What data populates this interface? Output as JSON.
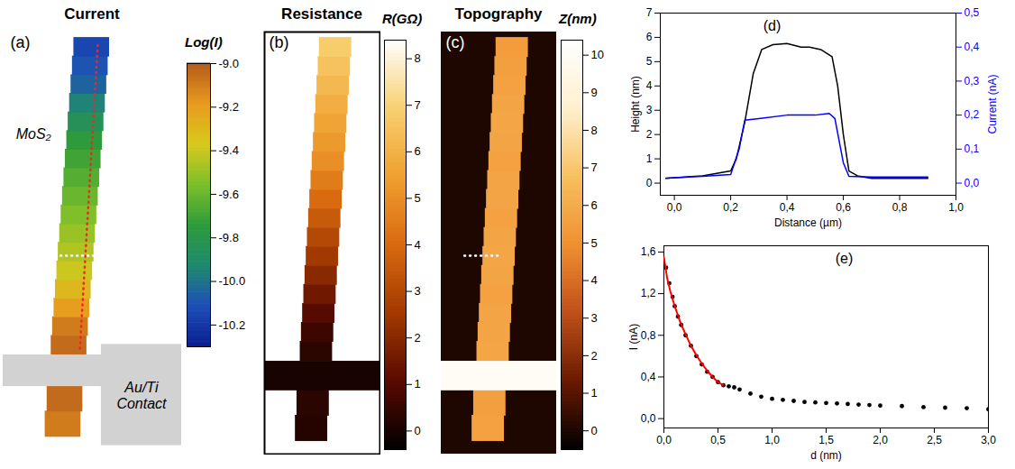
{
  "chart_data": [
    {
      "type": "map",
      "panel": "(a)",
      "title": "Current",
      "annotations": [
        "MoS₂",
        "Au/Ti Contact"
      ],
      "colorbar": {
        "label": "Log(I)",
        "range": [
          -10.3,
          -9.0
        ],
        "ticks": [
          {
            "value": -9.0,
            "label": "-9.0"
          },
          {
            "value": -9.2,
            "label": "-9.2"
          },
          {
            "value": -9.4,
            "label": "-9.4"
          },
          {
            "value": -9.6,
            "label": "-9.6"
          },
          {
            "value": -9.8,
            "label": "-9.8"
          },
          {
            "value": -10.0,
            "label": "-10.0"
          },
          {
            "value": -10.2,
            "label": "-10.2"
          }
        ],
        "colors": [
          "#0a1f8f",
          "#1d4fb8",
          "#1f8a6e",
          "#2e9b3a",
          "#7cbf2a",
          "#d8c81c",
          "#e89a1e",
          "#b55a1c"
        ]
      },
      "below_contact_values": [
        -9.1,
        -9.05
      ],
      "contact_value": null,
      "values": [
        -9.05,
        -9.1,
        -9.2,
        -9.3,
        -9.4,
        -9.45,
        -9.5,
        -9.55,
        -9.6,
        -9.65,
        -9.7,
        -9.75,
        -9.85,
        -9.95,
        -10.05,
        -10.1,
        -10.15
      ]
    },
    {
      "type": "map",
      "panel": "(b)",
      "title": "Resistance",
      "annotations": [],
      "colorbar": {
        "label": "R(GΩ)",
        "range": [
          -0.4,
          8.4
        ],
        "ticks": [
          0,
          1,
          2,
          3,
          4,
          5,
          6,
          7,
          8
        ],
        "colors": [
          "#000000",
          "#5a0a00",
          "#a33a00",
          "#d96a10",
          "#f0a030",
          "#f8d070",
          "#ffffff"
        ]
      },
      "below_contact_values": [
        0.2,
        0.3
      ],
      "contact_value": 0,
      "values": [
        0.3,
        0.6,
        1.0,
        1.5,
        2.0,
        2.5,
        3.0,
        3.5,
        4.0,
        4.5,
        5.0,
        5.3,
        5.6,
        5.9,
        6.2,
        6.5,
        6.8
      ]
    },
    {
      "type": "map",
      "panel": "(c)",
      "title": "Topography",
      "annotations": [],
      "colorbar": {
        "label": "Z(nm)",
        "range": [
          -0.5,
          10.4
        ],
        "ticks": [
          0,
          1,
          2,
          3,
          4,
          5,
          6,
          7,
          8,
          9,
          10
        ],
        "colors": [
          "#000000",
          "#6a1a00",
          "#c0501a",
          "#f09030",
          "#f8c060",
          "#fff0d0",
          "#ffffff"
        ]
      },
      "below_contact_values": [
        5.6,
        5.5
      ],
      "contact_value": 10,
      "background_value": 0,
      "values": [
        5.8,
        5.7,
        5.7,
        5.6,
        5.7,
        5.8,
        5.7,
        5.6,
        5.7,
        5.7,
        5.6,
        5.7,
        5.8,
        5.7,
        5.6,
        5.5,
        5.4
      ]
    },
    {
      "type": "line",
      "title": "(d)",
      "x_label": "Distance (µm)",
      "y_label": "Height (nm)",
      "y2_label": "Current (nA)",
      "xlim": [
        -0.05,
        1.0
      ],
      "xticks": [
        {
          "value": 0.0,
          "label": "0,0"
        },
        {
          "value": 0.2,
          "label": "0,2"
        },
        {
          "value": 0.4,
          "label": "0,4"
        },
        {
          "value": 0.6,
          "label": "0,6"
        },
        {
          "value": 0.8,
          "label": "0,8"
        },
        {
          "value": 1.0,
          "label": "1,0"
        }
      ],
      "ylim": [
        -0.5,
        7
      ],
      "yticks": [
        0,
        1,
        2,
        3,
        4,
        5,
        6,
        7
      ],
      "y2lim": [
        -0.0357,
        0.5
      ],
      "y2ticks": [
        {
          "value": 0.0,
          "label": "0,0"
        },
        {
          "value": 0.1,
          "label": "0,1"
        },
        {
          "value": 0.2,
          "label": "0,2"
        },
        {
          "value": 0.3,
          "label": "0,3"
        },
        {
          "value": 0.4,
          "label": "0,4"
        },
        {
          "value": 0.5,
          "label": "0,5"
        }
      ],
      "series": [
        {
          "color": "#000000",
          "x": [
            -0.03,
            0.1,
            0.2,
            0.22,
            0.25,
            0.28,
            0.31,
            0.35,
            0.4,
            0.45,
            0.48,
            0.52,
            0.56,
            0.58,
            0.6,
            0.62,
            0.65,
            0.7,
            0.8,
            0.9
          ],
          "values": [
            0.2,
            0.3,
            0.5,
            1.0,
            2.5,
            4.5,
            5.5,
            5.7,
            5.75,
            5.6,
            5.6,
            5.5,
            5.2,
            4.0,
            2.0,
            0.5,
            0.3,
            0.2,
            0.2,
            0.2
          ]
        },
        {
          "color": "#0000ff",
          "axis": "y2",
          "x": [
            -0.03,
            0.1,
            0.2,
            0.23,
            0.25,
            0.3,
            0.4,
            0.5,
            0.55,
            0.57,
            0.6,
            0.62,
            0.7,
            0.9
          ],
          "values": [
            0.015,
            0.02,
            0.025,
            0.1,
            0.185,
            0.19,
            0.2,
            0.2,
            0.205,
            0.19,
            0.06,
            0.02,
            0.018,
            0.018
          ]
        }
      ]
    },
    {
      "type": "scatter",
      "title": "(e)",
      "x_label": "d (nm)",
      "y_label": "I (nA)",
      "xlim": [
        0,
        3
      ],
      "xticks": [
        {
          "value": 0,
          "label": "0,0"
        },
        {
          "value": 0.5,
          "label": "0,5"
        },
        {
          "value": 1,
          "label": "1,0"
        },
        {
          "value": 1.5,
          "label": "1,5"
        },
        {
          "value": 2,
          "label": "2,0"
        },
        {
          "value": 2.5,
          "label": "2,5"
        },
        {
          "value": 3,
          "label": "3,0"
        }
      ],
      "ylim": [
        -0.09,
        1.66
      ],
      "yticks": [
        {
          "value": 0,
          "label": "0,0"
        },
        {
          "value": 0.4,
          "label": "0,4"
        },
        {
          "value": 0.8,
          "label": "0,8"
        },
        {
          "value": 1.2,
          "label": "1,2"
        },
        {
          "value": 1.6,
          "label": "1,6"
        }
      ],
      "series": [
        {
          "type": "scatter",
          "marker": "circle",
          "color": "#000000",
          "x": [
            0.02,
            0.05,
            0.08,
            0.1,
            0.13,
            0.16,
            0.2,
            0.25,
            0.3,
            0.35,
            0.4,
            0.45,
            0.5,
            0.55,
            0.6,
            0.65,
            0.7,
            0.8,
            0.9,
            1.0,
            1.1,
            1.2,
            1.3,
            1.4,
            1.5,
            1.6,
            1.7,
            1.8,
            1.9,
            2.0,
            2.2,
            2.4,
            2.6,
            2.8,
            3.0
          ],
          "values": [
            1.45,
            1.3,
            1.17,
            1.08,
            0.98,
            0.9,
            0.8,
            0.7,
            0.6,
            0.52,
            0.45,
            0.4,
            0.35,
            0.32,
            0.31,
            0.3,
            0.28,
            0.24,
            0.21,
            0.19,
            0.18,
            0.17,
            0.16,
            0.155,
            0.15,
            0.145,
            0.14,
            0.135,
            0.13,
            0.125,
            0.12,
            0.11,
            0.105,
            0.1,
            0.09
          ]
        },
        {
          "type": "line",
          "color": "#ff0000",
          "x": [
            0,
            0.03,
            0.06,
            0.1,
            0.15,
            0.2,
            0.25,
            0.3,
            0.35,
            0.4,
            0.45,
            0.5,
            0.55
          ],
          "values": [
            1.55,
            1.35,
            1.22,
            1.08,
            0.93,
            0.81,
            0.7,
            0.61,
            0.53,
            0.46,
            0.4,
            0.35,
            0.32
          ]
        }
      ]
    }
  ]
}
